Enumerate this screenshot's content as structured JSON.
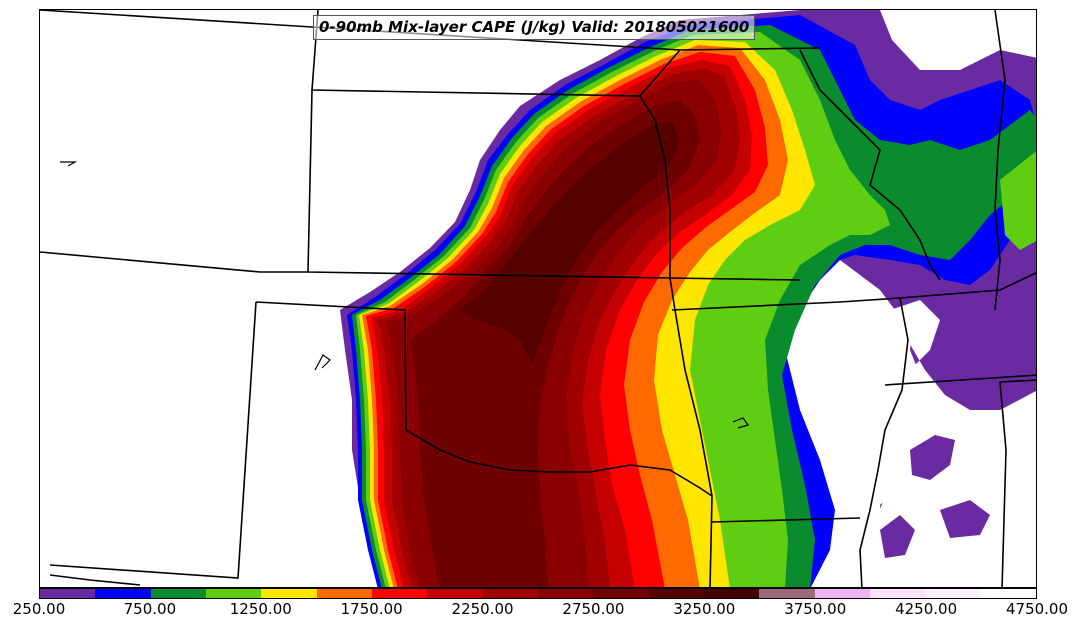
{
  "title": "0-90mb Mix-layer CAPE (J/kg) Valid: 201805021600",
  "colorbar": {
    "colors": [
      "#6a2aa2",
      "#0000ff",
      "#0a8c2e",
      "#5fce12",
      "#ffe600",
      "#ff6a00",
      "#ff0000",
      "#c40000",
      "#a00000",
      "#8a0000",
      "#6e0000",
      "#560000",
      "#430000",
      "#9a6a7c",
      "#f0b4f0",
      "#fce2fc",
      "#ffeefc",
      "#ffffff"
    ],
    "tick_labels": [
      "250.00",
      "750.00",
      "1250.00",
      "1750.00",
      "2250.00",
      "2750.00",
      "3250.00",
      "3750.00",
      "4250.00",
      "4750.00"
    ]
  },
  "legend_colors": {
    "purple": "#6a2aa2",
    "blue": "#0000ff",
    "green_dark": "#0a8c2e",
    "green_light": "#5fce12",
    "yellow": "#ffe600",
    "orange": "#ff6a00",
    "red": "#ff0000",
    "red_dark": "#c40000",
    "maroon": "#8a0000",
    "maroon_dark": "#600000"
  }
}
